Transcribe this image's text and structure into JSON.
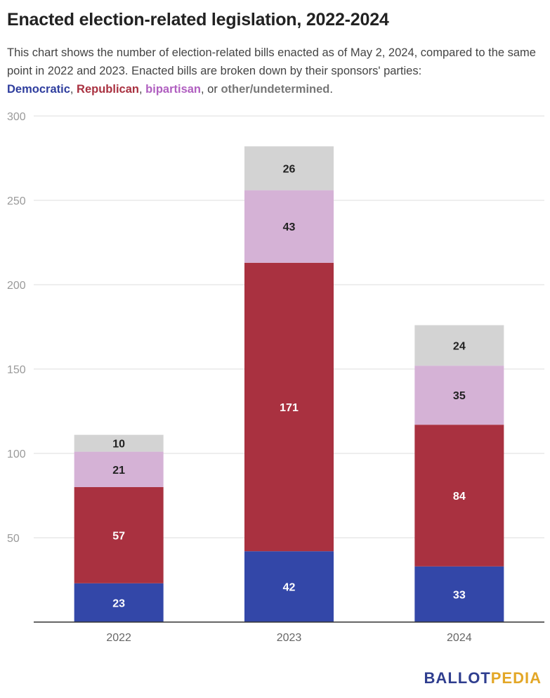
{
  "title": "Enacted election-related legislation, 2022-2024",
  "subtitle_text": "This chart shows the number of election-related bills enacted as of May 2, 2024, compared to the same point in 2022 and 2023. Enacted bills are broken down by their sponsors' parties:",
  "legend": {
    "democratic": "Democratic",
    "sep1": ", ",
    "republican": "Republican",
    "sep2": ", ",
    "bipartisan": "bipartisan",
    "sep3": ", or ",
    "other": "other/undetermined",
    "end": "."
  },
  "brand": {
    "part1": "BALLOT",
    "part2": "PEDIA"
  },
  "colors": {
    "democratic": "#3347a8",
    "republican": "#a93140",
    "bipartisan": "#d5b2d6",
    "other": "#d3d3d3",
    "legend_democratic": "#2f3e9e",
    "legend_republican": "#a93140",
    "legend_bipartisan": "#b05fc0",
    "legend_other": "#777777"
  },
  "chart_data": {
    "type": "bar",
    "stacked": true,
    "categories": [
      "2022",
      "2023",
      "2024"
    ],
    "ylim": [
      0,
      300
    ],
    "yticks": [
      "50",
      "100",
      "150",
      "200",
      "250",
      "300"
    ],
    "grid": true,
    "series": [
      {
        "name": "Democratic",
        "color_key": "democratic",
        "label_color": "#ffffff",
        "values": [
          23,
          42,
          33
        ]
      },
      {
        "name": "Republican",
        "color_key": "republican",
        "label_color": "#ffffff",
        "values": [
          57,
          171,
          84
        ]
      },
      {
        "name": "bipartisan",
        "color_key": "bipartisan",
        "label_color": "#222222",
        "values": [
          21,
          43,
          35
        ]
      },
      {
        "name": "other/undetermined",
        "color_key": "other",
        "label_color": "#222222",
        "values": [
          10,
          26,
          24
        ]
      }
    ]
  }
}
